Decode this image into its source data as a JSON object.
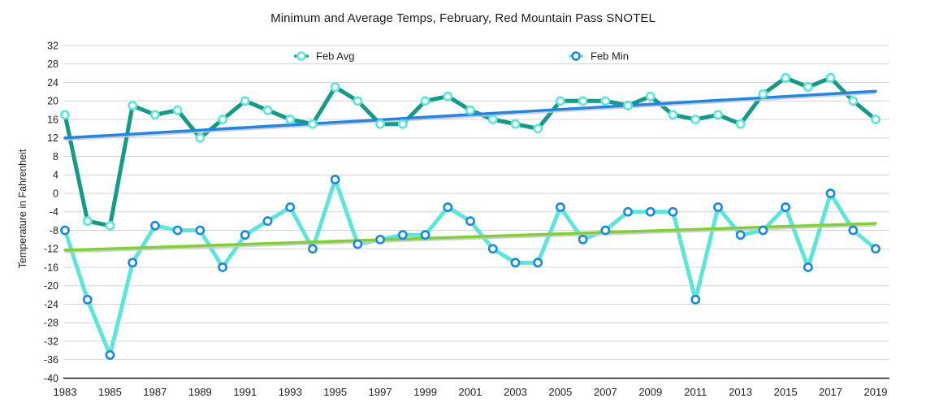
{
  "chart_data": {
    "type": "line",
    "title": "Minimum and Average Temps, February, Red Mountain Pass SNOTEL",
    "xlabel": "",
    "ylabel": "Temperature in Fahrenheit",
    "x": [
      1983,
      1984,
      1985,
      1986,
      1987,
      1988,
      1989,
      1990,
      1991,
      1992,
      1993,
      1994,
      1995,
      1996,
      1997,
      1998,
      1999,
      2000,
      2001,
      2002,
      2003,
      2004,
      2005,
      2006,
      2007,
      2008,
      2009,
      2010,
      2011,
      2012,
      2013,
      2014,
      2015,
      2016,
      2017,
      2018,
      2019
    ],
    "x_tick_step": 2,
    "ylim": [
      -40,
      32
    ],
    "y_tick_step": 4,
    "grid": true,
    "legend_position": "top-center-inside",
    "series": [
      {
        "name": "Feb Avg",
        "line_color": "#149b86",
        "marker_color": "#5ce6da",
        "values": [
          17,
          -6,
          -7,
          19,
          17,
          18,
          12,
          16,
          20,
          18,
          16,
          15,
          23,
          20,
          15,
          15,
          20,
          21,
          18,
          16,
          15,
          14,
          20,
          20,
          20,
          19,
          21,
          17,
          16,
          17,
          15,
          21.5,
          25,
          23,
          25,
          20,
          16
        ]
      },
      {
        "name": "Feb Min",
        "line_color": "#5ce6da",
        "marker_color": "#1787e8",
        "values": [
          -8,
          -23,
          -35,
          -15,
          -7,
          -8,
          -8,
          -16,
          -9,
          -6,
          -3,
          -12,
          3,
          -11,
          -10,
          -9,
          -9,
          -3,
          -6,
          -12,
          -15,
          -15,
          -3,
          -10,
          -8,
          -4,
          -4,
          -4,
          -23,
          -3,
          -9,
          -8,
          -3,
          -16,
          0,
          -8,
          -12
        ]
      }
    ],
    "trendlines": [
      {
        "series": "Feb Avg",
        "color": "#1d86ee",
        "start_value": 12.0,
        "end_value": 22.1
      },
      {
        "series": "Feb Min",
        "color": "#7fd22e",
        "start_value": -12.3,
        "end_value": -6.5
      }
    ],
    "axis_color": "#1a1a1a",
    "gridline_color": "#d4d4d4",
    "tick_label_color": "#1f1f1f"
  }
}
